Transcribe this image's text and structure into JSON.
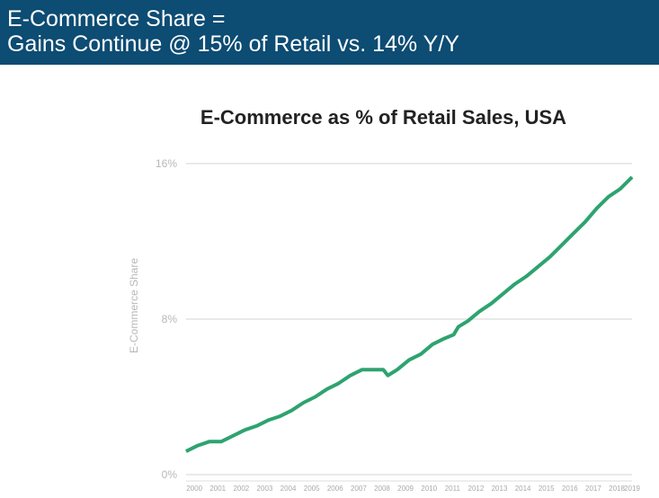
{
  "header": {
    "line1": "E-Commerce Share =",
    "line2": "Gains Continue @ 15% of Retail vs. 14% Y/Y"
  },
  "colors": {
    "header_bg": "#0d4c73",
    "line": "#2ea36f",
    "grid": "#e2e2e2"
  },
  "chart_data": {
    "type": "line",
    "title": "E-Commerce as % of Retail Sales, USA",
    "xlabel": "",
    "ylabel": "E-Commerce Share",
    "ylim": [
      0,
      16
    ],
    "xlim": [
      2000,
      2019
    ],
    "y_ticks": [
      "0%",
      "8%",
      "16%"
    ],
    "y_tick_values": [
      0,
      8,
      16
    ],
    "x_ticks": [
      "2000",
      "2001",
      "2002",
      "2003",
      "2004",
      "2005",
      "2006",
      "2007",
      "2008",
      "2009",
      "2010",
      "2011",
      "2012",
      "2013",
      "2014",
      "2015",
      "2016",
      "2017",
      "2018",
      "2019"
    ],
    "grid": true,
    "series": [
      {
        "x": [
          2000.0,
          2000.5,
          2001.0,
          2001.5,
          2002.0,
          2002.5,
          2003.0,
          2003.5,
          2004.0,
          2004.5,
          2005.0,
          2005.5,
          2006.0,
          2006.5,
          2007.0,
          2007.5,
          2008.0,
          2008.4,
          2008.6,
          2009.0,
          2009.5,
          2010.0,
          2010.5,
          2011.0,
          2011.4,
          2011.6,
          2012.0,
          2012.5,
          2013.0,
          2013.5,
          2014.0,
          2014.5,
          2015.0,
          2015.5,
          2016.0,
          2016.5,
          2017.0,
          2017.5,
          2018.0,
          2018.5,
          2019.0
        ],
        "y": [
          1.2,
          1.5,
          1.7,
          1.7,
          2.0,
          2.3,
          2.5,
          2.8,
          3.0,
          3.3,
          3.7,
          4.0,
          4.4,
          4.7,
          5.1,
          5.4,
          5.4,
          5.4,
          5.1,
          5.4,
          5.9,
          6.2,
          6.7,
          7.0,
          7.2,
          7.6,
          7.9,
          8.4,
          8.8,
          9.3,
          9.8,
          10.2,
          10.7,
          11.2,
          11.8,
          12.4,
          13.0,
          13.7,
          14.3,
          14.7,
          15.3
        ]
      }
    ]
  }
}
